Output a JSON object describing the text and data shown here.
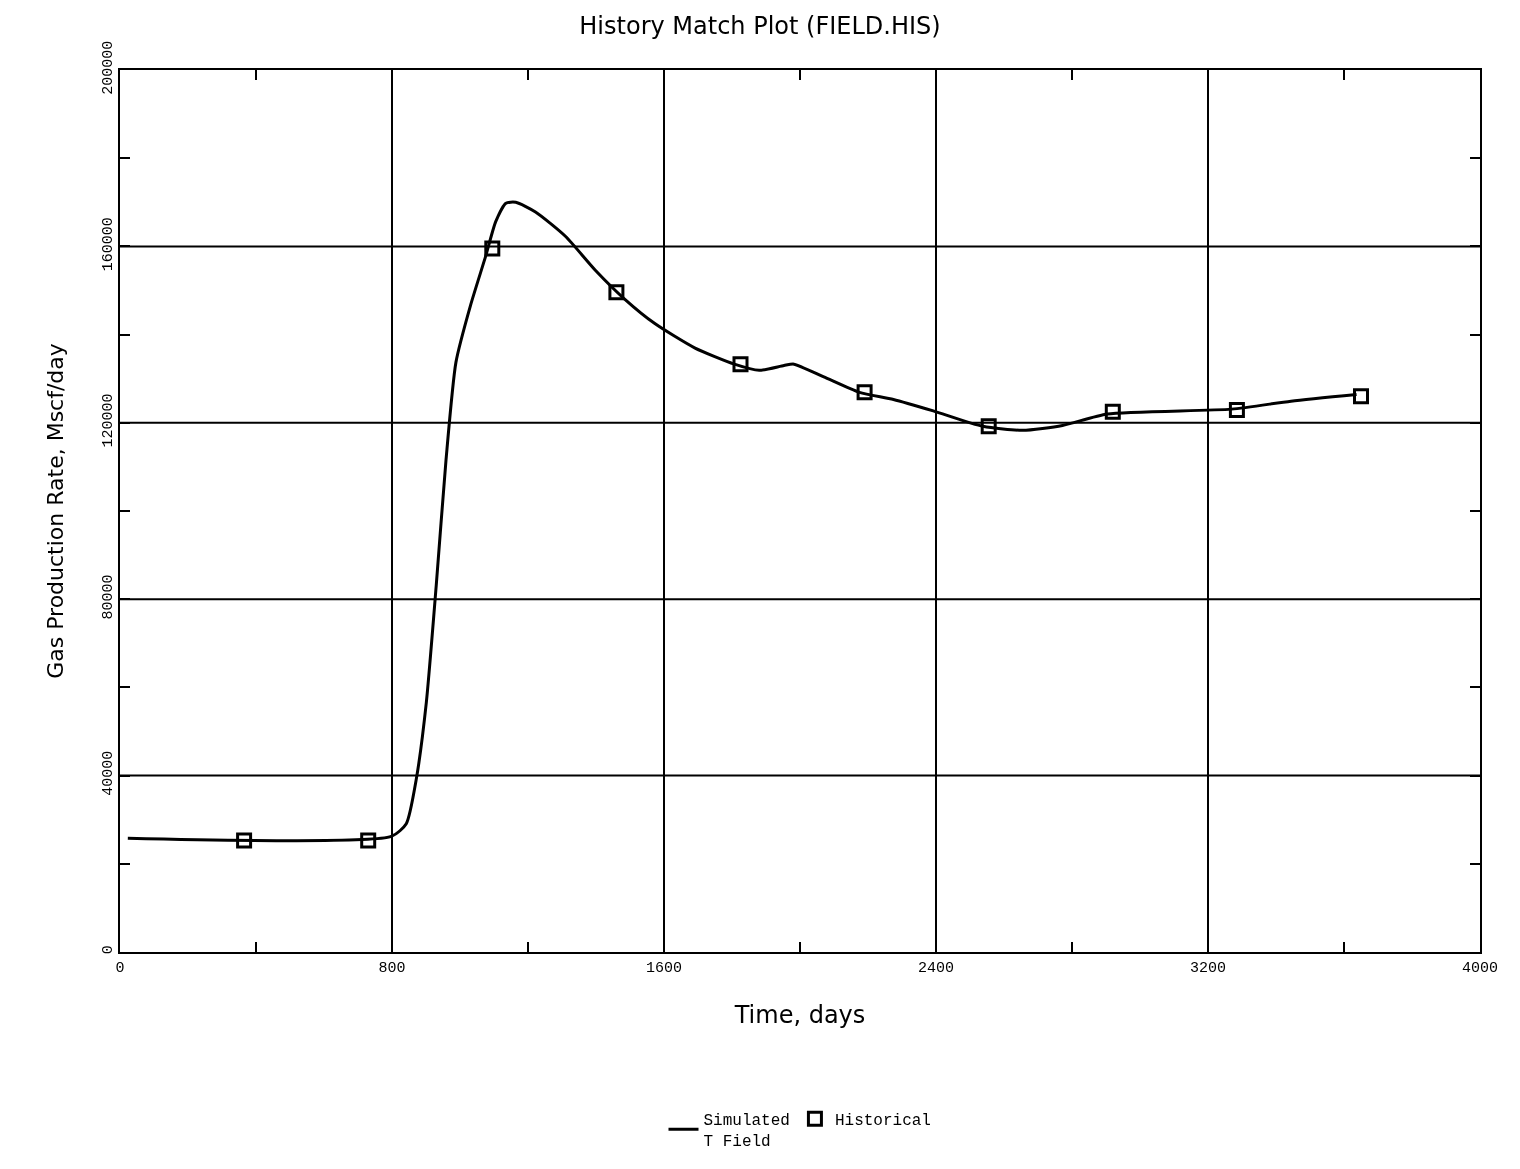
{
  "chart_data": {
    "type": "line",
    "title": "History Match Plot (FIELD.HIS)",
    "xlabel": "Time, days",
    "ylabel": "Gas Production Rate, Mscf/day",
    "xlim": [
      0,
      4000
    ],
    "ylim": [
      0,
      200000
    ],
    "xticks": [
      0,
      {
        "value": 400,
        "label": null
      },
      800,
      {
        "value": 1200,
        "label": null
      },
      1600,
      {
        "value": 2000,
        "label": null
      },
      2400,
      {
        "value": 2800,
        "label": null
      },
      3200,
      {
        "value": 3600,
        "label": null
      },
      4000
    ],
    "yticks": [
      0,
      {
        "value": 20000,
        "label": null
      },
      40000,
      {
        "value": 60000,
        "label": null
      },
      80000,
      {
        "value": 100000,
        "label": null
      },
      120000,
      {
        "value": 140000,
        "label": null
      },
      160000,
      {
        "value": 180000,
        "label": null
      },
      200000
    ],
    "grid": true,
    "legend": "bottom",
    "series": [
      {
        "name": "Simulated\nT Field",
        "marker": "none",
        "line_style": "solid",
        "color": "#000000",
        "x": [
          23,
          798,
          842,
          871,
          901,
          930,
          959,
          988,
          1032,
          1076,
          1105,
          1135,
          1164,
          1222,
          1310,
          1398,
          1485,
          1573,
          1690,
          1807,
          1880,
          1953,
          1982,
          2070,
          2175,
          2275,
          2392,
          2538,
          2655,
          2772,
          2904,
          3269,
          3444,
          3637
        ],
        "values": [
          25800,
          26200,
          29100,
          39000,
          56600,
          83000,
          111700,
          133700,
          146900,
          157900,
          165600,
          169800,
          170000,
          167800,
          162300,
          154600,
          148000,
          142500,
          137000,
          133300,
          131900,
          133000,
          133300,
          130400,
          126900,
          125300,
          122700,
          119200,
          118300,
          119400,
          122000,
          123100,
          124900,
          126400
        ]
      },
      {
        "name": "Historical",
        "type": "scatter",
        "marker": "square",
        "color": "#000000",
        "x": [
          365,
          730,
          1095,
          1460,
          1825,
          2190,
          2555,
          2920,
          3285,
          3650
        ],
        "values": [
          25300,
          25300,
          159500,
          149600,
          133300,
          126900,
          119200,
          122500,
          122900,
          126000
        ]
      }
    ]
  }
}
